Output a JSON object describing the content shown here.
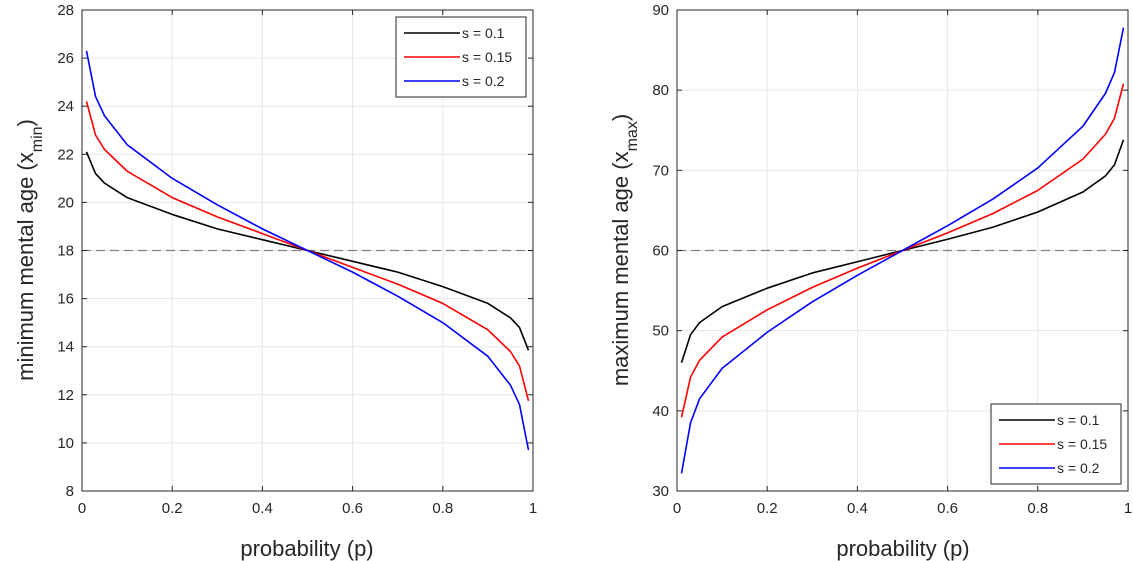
{
  "chart_data": [
    {
      "type": "line",
      "xlabel": "probability (p)",
      "ylabel": {
        "base": "minimum mental age (x",
        "sub": "min",
        "close": ")"
      },
      "xlim": [
        0,
        1
      ],
      "ylim": [
        8,
        28
      ],
      "xticks": [
        0,
        0.2,
        0.4,
        0.6,
        0.8,
        1
      ],
      "xtick_labels": [
        "0",
        "0.2",
        "0.4",
        "0.6",
        "0.8",
        "1"
      ],
      "yticks": [
        8,
        10,
        12,
        14,
        16,
        18,
        20,
        22,
        24,
        26,
        28
      ],
      "ytick_labels": [
        "8",
        "10",
        "12",
        "14",
        "16",
        "18",
        "20",
        "22",
        "24",
        "26",
        "28"
      ],
      "grid": true,
      "reference_line": {
        "y": 18,
        "style": "dashed",
        "color": "#808080"
      },
      "legend_position": "top-right",
      "x": [
        0.01,
        0.03,
        0.05,
        0.1,
        0.2,
        0.3,
        0.4,
        0.5,
        0.6,
        0.7,
        0.8,
        0.9,
        0.95,
        0.97,
        0.99
      ],
      "series": [
        {
          "name": "s = 0.1",
          "color": "#000000",
          "values": [
            22.1,
            21.2,
            20.8,
            20.2,
            19.5,
            18.9,
            18.45,
            18.0,
            17.55,
            17.1,
            16.5,
            15.8,
            15.2,
            14.8,
            13.85
          ]
        },
        {
          "name": "s = 0.15",
          "color": "#ff0000",
          "values": [
            24.2,
            22.8,
            22.2,
            21.3,
            20.2,
            19.4,
            18.7,
            18.0,
            17.3,
            16.6,
            15.8,
            14.7,
            13.8,
            13.2,
            11.75
          ]
        },
        {
          "name": "s = 0.2",
          "color": "#0000ff",
          "values": [
            26.3,
            24.4,
            23.6,
            22.4,
            21.0,
            19.9,
            18.9,
            18.0,
            17.1,
            16.1,
            15.0,
            13.6,
            12.4,
            11.6,
            9.7
          ]
        }
      ]
    },
    {
      "type": "line",
      "xlabel": "probability (p)",
      "ylabel": {
        "base": "maximum mental age (x",
        "sub": "max",
        "close": ")"
      },
      "xlim": [
        0,
        1
      ],
      "ylim": [
        30,
        90
      ],
      "xticks": [
        0,
        0.2,
        0.4,
        0.6,
        0.8,
        1
      ],
      "xtick_labels": [
        "0",
        "0.2",
        "0.4",
        "0.6",
        "0.8",
        "1"
      ],
      "yticks": [
        30,
        40,
        50,
        60,
        70,
        80,
        90
      ],
      "ytick_labels": [
        "30",
        "40",
        "50",
        "60",
        "70",
        "80",
        "90"
      ],
      "grid": true,
      "reference_line": {
        "y": 60,
        "style": "dashed",
        "color": "#808080"
      },
      "legend_position": "bottom-right",
      "x": [
        0.01,
        0.03,
        0.05,
        0.1,
        0.2,
        0.3,
        0.4,
        0.5,
        0.6,
        0.7,
        0.8,
        0.9,
        0.95,
        0.97,
        0.99
      ],
      "series": [
        {
          "name": "s = 0.1",
          "color": "#000000",
          "values": [
            46.0,
            49.5,
            51.0,
            53.0,
            55.3,
            57.2,
            58.6,
            60.0,
            61.4,
            62.9,
            64.8,
            67.3,
            69.3,
            70.7,
            73.8
          ]
        },
        {
          "name": "s = 0.15",
          "color": "#ff0000",
          "values": [
            39.2,
            44.2,
            46.3,
            49.2,
            52.6,
            55.4,
            57.8,
            60.0,
            62.2,
            64.6,
            67.5,
            71.4,
            74.5,
            76.5,
            80.8
          ]
        },
        {
          "name": "s = 0.2",
          "color": "#0000ff",
          "values": [
            32.2,
            38.5,
            41.5,
            45.3,
            49.8,
            53.6,
            56.9,
            60.0,
            63.1,
            66.4,
            70.3,
            75.5,
            79.6,
            82.2,
            87.8
          ]
        }
      ]
    }
  ]
}
